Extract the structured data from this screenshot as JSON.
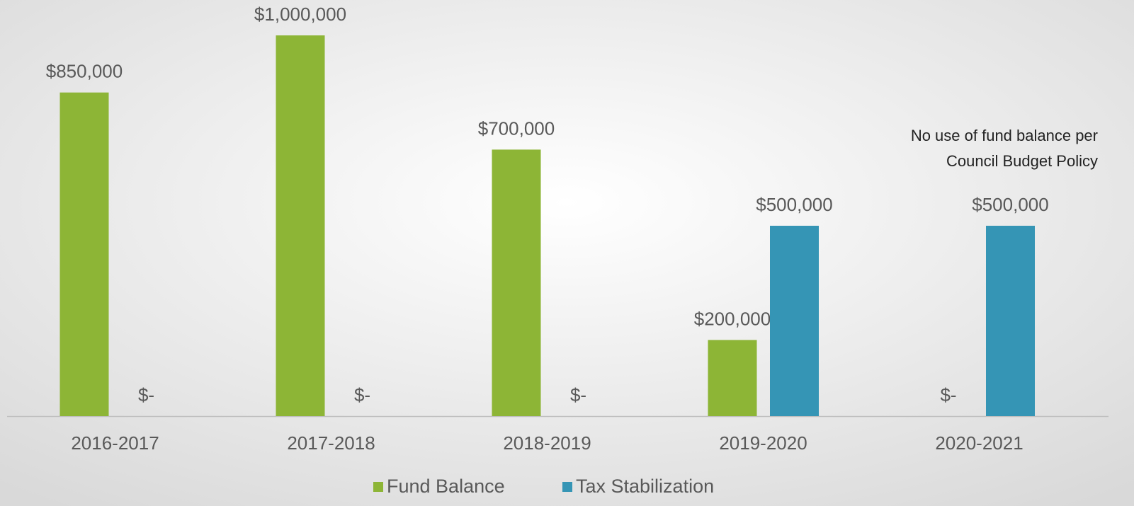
{
  "chart_data": {
    "type": "bar",
    "categories": [
      "2016-2017",
      "2017-2018",
      "2018-2019",
      "2019-2020",
      "2020-2021"
    ],
    "series": [
      {
        "name": "Fund Balance",
        "color": "#8db536",
        "values": [
          850000,
          1000000,
          700000,
          200000,
          0
        ],
        "value_labels": [
          "$850,000",
          "$1,000,000",
          "$700,000",
          "$200,000",
          "$-"
        ]
      },
      {
        "name": "Tax Stabilization",
        "color": "#3595b5",
        "values": [
          0,
          0,
          0,
          500000,
          500000
        ],
        "value_labels": [
          "$-",
          "$-",
          "$-",
          "$500,000",
          "$500,000"
        ]
      }
    ],
    "ylim": [
      0,
      1000000
    ],
    "grid": false,
    "legend": "bottom",
    "annotation": [
      "No use of fund balance per",
      "Council Budget Policy"
    ]
  }
}
